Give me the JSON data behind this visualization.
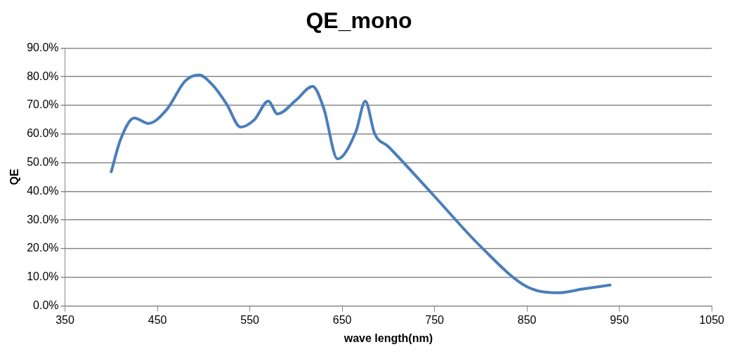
{
  "chart_data": {
    "type": "line",
    "title": "QE_mono",
    "xlabel": "wave length(nm)",
    "ylabel": "QE",
    "x": [
      400,
      410,
      425,
      440,
      460,
      480,
      495,
      510,
      525,
      540,
      555,
      570,
      580,
      600,
      618,
      630,
      645,
      665,
      675,
      685,
      700,
      750,
      800,
      850,
      885,
      910,
      940
    ],
    "series": [
      {
        "color": "#4a7ebb",
        "values": [
          46.8,
          58,
          65.6,
          63.7,
          68.5,
          78.5,
          80.6,
          77,
          70.4,
          62.4,
          65,
          71.5,
          67,
          71.8,
          76.6,
          69,
          51.3,
          61,
          71.5,
          60.2,
          55.6,
          38.2,
          20.7,
          6.7,
          4.6,
          5.9,
          7.3
        ]
      }
    ],
    "xlim": [
      350,
      1050
    ],
    "xticks": [
      350,
      450,
      550,
      650,
      750,
      850,
      950,
      1050
    ],
    "ylim": [
      0,
      90
    ],
    "yticks": [
      {
        "value": 0,
        "label": "0.0%"
      },
      {
        "value": 10,
        "label": "10.0%"
      },
      {
        "value": 20,
        "label": "20.0%"
      },
      {
        "value": 30,
        "label": "30.0%"
      },
      {
        "value": 40,
        "label": "40.0%"
      },
      {
        "value": 50,
        "label": "50.0%"
      },
      {
        "value": 60,
        "label": "60.0%"
      },
      {
        "value": 70,
        "label": "70.0%"
      },
      {
        "value": 80,
        "label": "80.0%"
      },
      {
        "value": 90,
        "label": "90.0%"
      }
    ],
    "grid": "y",
    "legend": false,
    "marker": "none",
    "line_style": "solid"
  }
}
